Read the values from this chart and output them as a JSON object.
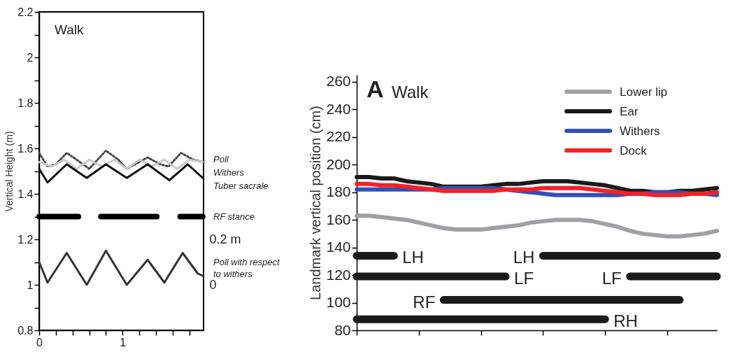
{
  "chart_data": [
    {
      "type": "line",
      "title": "Walk",
      "ylabel": "Vertical Height (m)",
      "legend": false,
      "grid": false,
      "line_style": "solid",
      "xlim": [
        0,
        1.97
      ],
      "xticks": [
        0,
        {
          "value": 0.2,
          "label": null
        },
        {
          "value": 0.4,
          "label": null
        },
        {
          "value": 0.6,
          "label": null
        },
        {
          "value": 0.8,
          "label": null
        },
        1,
        {
          "value": 1.2,
          "label": null
        },
        {
          "value": 1.4,
          "label": null
        },
        {
          "value": 1.6,
          "label": null
        },
        {
          "value": 1.8,
          "label": null
        }
      ],
      "ylim": [
        0.8,
        2.2
      ],
      "yticks": [
        0.8,
        {
          "value": 0.9,
          "label": null
        },
        1,
        {
          "value": 1.1,
          "label": null
        },
        1.2,
        {
          "value": 1.3,
          "label": null
        },
        1.4,
        {
          "value": 1.5,
          "label": null
        },
        1.6,
        {
          "value": 1.7,
          "label": null
        },
        1.8,
        {
          "value": 1.9,
          "label": null
        },
        2,
        {
          "value": 2.1,
          "label": null
        },
        2.2
      ],
      "y2lim": [
        -0.2,
        1.2
      ],
      "y2ticks": [
        0,
        {
          "value": 0.2,
          "label": "0.2 m"
        }
      ],
      "series": [
        {
          "name": "Poll",
          "color": "#444444",
          "line_style": "dotted",
          "x": [
            0,
            0.1,
            0.2,
            0.33,
            0.45,
            0.6,
            0.8,
            0.95,
            1.05,
            1.3,
            1.45,
            1.55,
            1.7,
            1.85,
            1.96
          ],
          "values": [
            1.58,
            1.52,
            1.53,
            1.58,
            1.55,
            1.51,
            1.59,
            1.55,
            1.51,
            1.56,
            1.53,
            1.52,
            1.58,
            1.55,
            1.54
          ]
        },
        {
          "name": "Withers",
          "color": "#c8c8c8",
          "x": [
            0,
            0.15,
            0.3,
            0.45,
            0.6,
            0.75,
            0.9,
            1.05,
            1.2,
            1.35,
            1.5,
            1.65,
            1.8,
            1.96
          ],
          "values": [
            1.54,
            1.52,
            1.55,
            1.51,
            1.55,
            1.52,
            1.55,
            1.51,
            1.55,
            1.52,
            1.55,
            1.51,
            1.55,
            1.54
          ]
        },
        {
          "name": "Tuber sacrale",
          "color": "#111111",
          "x": [
            0,
            0.1,
            0.33,
            0.57,
            0.8,
            1.05,
            1.3,
            1.56,
            1.78,
            1.96
          ],
          "values": [
            1.51,
            1.45,
            1.53,
            1.47,
            1.53,
            1.47,
            1.53,
            1.46,
            1.53,
            1.47
          ]
        },
        {
          "name": "RF stance",
          "color": "#000000",
          "x": [
            0,
            0.47,
            0.6,
            0.74,
            1.41,
            1.55,
            1.69,
            1.96
          ],
          "values": [
            1.3,
            1.3,
            null,
            1.3,
            1.3,
            null,
            1.3,
            1.3
          ]
        },
        {
          "name": "Poll with respect to withers",
          "color": "#333333",
          "axis": "y2",
          "x": [
            0,
            0.1,
            0.33,
            0.57,
            0.8,
            1.05,
            1.3,
            1.5,
            1.72,
            1.9,
            1.96
          ],
          "values": [
            0.1,
            0.01,
            0.14,
            0,
            0.15,
            0,
            0.11,
            0.01,
            0.14,
            0.05,
            0.04
          ]
        }
      ]
    },
    {
      "type": "line",
      "title": "Walk",
      "annotations": [
        "A"
      ],
      "ylabel": "Landmark vertical position (cm)",
      "legend": "top right",
      "grid": false,
      "tick_labels": "y",
      "line_style": "solid",
      "categories": [
        null,
        null,
        null,
        null,
        null,
        null,
        null,
        null,
        null,
        null,
        null,
        null,
        null,
        null,
        null,
        null,
        null,
        null,
        null,
        null,
        null,
        null,
        null,
        null,
        null,
        null,
        null,
        null,
        null,
        null
      ],
      "ylim": [
        80,
        265
      ],
      "yticks": [
        80,
        100,
        120,
        140,
        160,
        180,
        200,
        220,
        240,
        260
      ],
      "series": [
        {
          "name": "Lower lip",
          "color": "#a0a0a4",
          "values": [
            163,
            163,
            162,
            161,
            160,
            158,
            156,
            154,
            153,
            153,
            153,
            154,
            155,
            156,
            158,
            159,
            160,
            160,
            160,
            159,
            157,
            155,
            152,
            150,
            149,
            148,
            148,
            149,
            150,
            152
          ]
        },
        {
          "name": "Ear",
          "color": "#1a1a1a",
          "values": [
            191,
            191,
            190,
            190,
            188,
            187,
            186,
            184,
            184,
            184,
            184,
            185,
            186,
            186,
            187,
            188,
            188,
            188,
            187,
            186,
            185,
            183,
            181,
            181,
            180,
            180,
            181,
            181,
            182,
            183
          ]
        },
        {
          "name": "Withers",
          "color": "#3050b8",
          "values": [
            182,
            182,
            182,
            182,
            182,
            182,
            182,
            183,
            183,
            183,
            183,
            183,
            182,
            181,
            180,
            179,
            178,
            178,
            178,
            178,
            178,
            178,
            179,
            179,
            180,
            180,
            180,
            179,
            179,
            178
          ]
        },
        {
          "name": "Dock",
          "color": "#f52025",
          "values": [
            186,
            186,
            185,
            185,
            184,
            183,
            182,
            181,
            181,
            181,
            181,
            181,
            182,
            182,
            182,
            183,
            183,
            183,
            183,
            182,
            181,
            180,
            179,
            179,
            178,
            178,
            178,
            179,
            179,
            180
          ]
        },
        {
          "name": "LH",
          "color": "#1a1a1a",
          "values": [
            134,
            134,
            134,
            134,
            null,
            null,
            null,
            null,
            null,
            null,
            null,
            null,
            null,
            null,
            null,
            null,
            null,
            null,
            null,
            null,
            null,
            null,
            null,
            null,
            null,
            null,
            null,
            null,
            null,
            null
          ]
        },
        {
          "name": "LH",
          "color": "#1a1a1a",
          "values": [
            null,
            null,
            null,
            null,
            null,
            null,
            null,
            null,
            null,
            null,
            null,
            null,
            null,
            null,
            null,
            134,
            134,
            134,
            134,
            134,
            134,
            134,
            134,
            134,
            134,
            134,
            134,
            134,
            134,
            134
          ]
        },
        {
          "name": "LF",
          "color": "#1a1a1a",
          "values": [
            119,
            119,
            119,
            119,
            119,
            119,
            119,
            119,
            119,
            119,
            119,
            119,
            119,
            null,
            null,
            null,
            null,
            null,
            null,
            null,
            null,
            null,
            null,
            null,
            null,
            null,
            null,
            null,
            null,
            null
          ]
        },
        {
          "name": "LF",
          "color": "#1a1a1a",
          "values": [
            null,
            null,
            null,
            null,
            null,
            null,
            null,
            null,
            null,
            null,
            null,
            null,
            null,
            null,
            null,
            null,
            null,
            null,
            null,
            null,
            null,
            null,
            119,
            119,
            119,
            119,
            119,
            119,
            119,
            119
          ]
        },
        {
          "name": "RF",
          "color": "#1a1a1a",
          "values": [
            null,
            null,
            null,
            null,
            null,
            null,
            null,
            102,
            102,
            102,
            102,
            102,
            102,
            102,
            102,
            102,
            102,
            102,
            102,
            102,
            102,
            102,
            102,
            102,
            102,
            102,
            102,
            null,
            null,
            null
          ]
        },
        {
          "name": "RH",
          "color": "#1a1a1a",
          "values": [
            88,
            88,
            88,
            88,
            88,
            88,
            88,
            88,
            88,
            88,
            88,
            88,
            88,
            88,
            88,
            88,
            88,
            88,
            88,
            88,
            88,
            null,
            null,
            null,
            null,
            null,
            null,
            null,
            null,
            null
          ]
        }
      ]
    }
  ]
}
